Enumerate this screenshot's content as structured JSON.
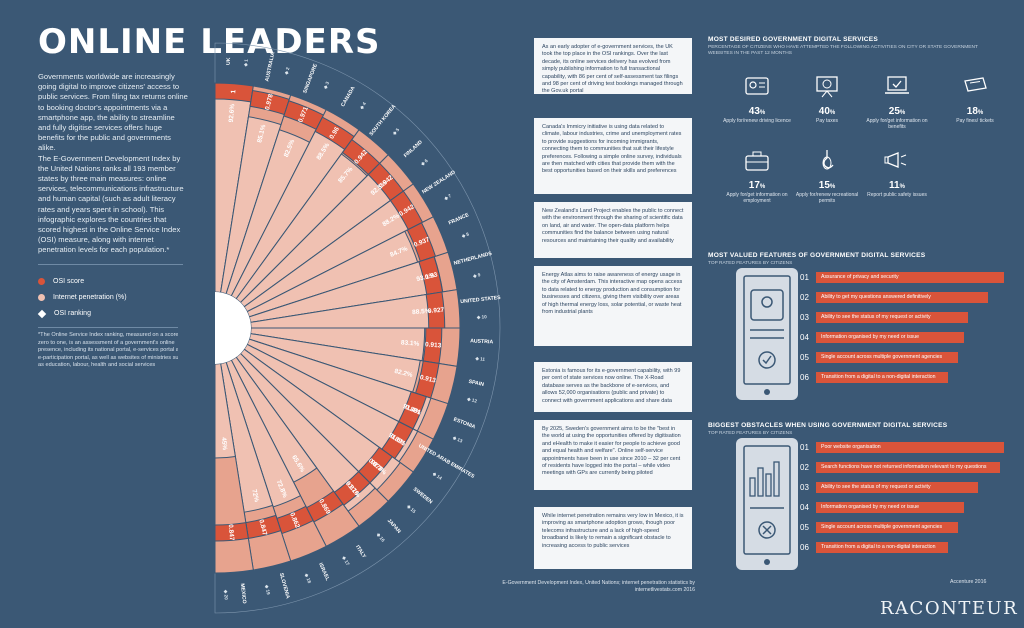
{
  "title": "ONLINE LEADERS",
  "intro_p1": "Governments worldwide are increasingly going digital to improve citizens' access to public services. From filing tax returns online to booking doctor's appointments via a smartphone app, the ability to streamline and fully digitise services offers huge benefits for the public and governments alike.",
  "intro_p2": "The E-Government Development Index by the United Nations ranks all 193 member states by three main measures: online services, telecommunications infrastructure and human capital (such as adult literacy rates and years spent in school). This infographic explores the countries that scored highest in the Online Service Index (OSI) measure, along with internet penetration levels for each population.*",
  "legend": {
    "osi": "OSI score",
    "internet": "Internet penetration (%)",
    "ranking": "OSI ranking"
  },
  "footnote": "*The Online Service Index ranking, measured on a score of zero to one, is an assessment of a government's online presence, including its national portal, e-services portal and e-participation portal, as well as websites of ministries such as education, labour, health and social services",
  "colors": {
    "background": "#3b5875",
    "osi": "#d9543a",
    "internet": "#f0c1b2",
    "card": "#f4f6f8"
  },
  "countries": [
    {
      "name": "UK",
      "rank": "1",
      "osi": "1",
      "internet": "92.6%"
    },
    {
      "name": "AUSTRALIA",
      "rank": "2",
      "osi": "0.978",
      "internet": "85.1%"
    },
    {
      "name": "SINGAPORE",
      "rank": "3",
      "osi": "0.971",
      "internet": "82.5%"
    },
    {
      "name": "CANADA",
      "rank": "4",
      "osi": "0.96",
      "internet": "88.5%"
    },
    {
      "name": "SOUTH KOREA",
      "rank": "5",
      "osi": "0.942",
      "internet": "85.7%"
    },
    {
      "name": "FINLAND",
      "rank": "6",
      "osi": "0.942",
      "internet": "92.5%"
    },
    {
      "name": "NEW ZEALAND",
      "rank": "7",
      "osi": "0.942",
      "internet": "88.2%"
    },
    {
      "name": "FRANCE",
      "rank": "8",
      "osi": "0.937",
      "internet": "84.7%"
    },
    {
      "name": "NETHERLANDS",
      "rank": "9",
      "osi": "0.93",
      "internet": "93.1%"
    },
    {
      "name": "UNITED STATES",
      "rank": "10",
      "osi": "0.927",
      "internet": "88.5%"
    },
    {
      "name": "AUSTRIA",
      "rank": "11",
      "osi": "0.913",
      "internet": "83.1%"
    },
    {
      "name": "SPAIN",
      "rank": "12",
      "osi": "0.913",
      "internet": "82.2%"
    },
    {
      "name": "ESTONIA",
      "rank": "13",
      "osi": "0.891",
      "internet": "91.4%"
    },
    {
      "name": "UNITED ARAB EMIRATES",
      "rank": "14",
      "osi": "0.891",
      "internet": "91.6%"
    },
    {
      "name": "SWEDEN",
      "rank": "15",
      "osi": "0.876",
      "internet": "92.3%"
    },
    {
      "name": "JAPAN",
      "rank": "16",
      "osi": "0.876",
      "internet": "91.1%"
    },
    {
      "name": "ITALY",
      "rank": "17",
      "osi": "0.869",
      "internet": "65.6%"
    },
    {
      "name": "ISRAEL",
      "rank": "18",
      "osi": "0.862",
      "internet": "72.8%"
    },
    {
      "name": "SLOVENIA",
      "rank": "19",
      "osi": "0.847",
      "internet": "72%"
    },
    {
      "name": "MEXICO",
      "rank": "20",
      "osi": "0.847",
      "internet": "45%"
    }
  ],
  "case_studies": [
    "As an early adopter of e-government services, the UK took the top place in the OSI rankings. Over the last decade, its online services delivery has evolved from simply publishing information to full transactional capability, with 86 per cent of self-assessment tax filings and 98 per cent of driving test bookings managed through the Gov.uk portal",
    "Canada's Immicry initiative is using data related to climate, labour industries, crime and unemployment rates to provide suggestions for incoming immigrants, connecting them to communities that suit their lifestyle preferences. Following a simple online survey, individuals are then matched with cities that provide them with the best opportunities based on their skills and preferences",
    "New Zealand's Land Project enables the public to connect with the environment through the sharing of scientific data on land, air and water. The open-data platform helps communities find the balance between using natural resources and maintaining their quality and availability",
    "Energy Atlas aims to raise awareness of energy usage in the city of Amsterdam. This interactive map opens access to data related to energy production and consumption for businesses and citizens, giving them visibility over areas of high thermal energy loss, solar potential, or waste heat from industrial plants",
    "Estonia is famous for its e-government capability, with 99 per cent of state services now online. The X-Road database serves as the backbone of e-services, and allows 52,000 organisations (public and private) to connect with government applications and share data",
    "By 2025, Sweden's government aims to be the \"best in the world at using the opportunities offered by digitisation and eHealth to make it easier for people to achieve good and equal health and welfare\". Online self-service appointments have been in use since 2010 – 32 per cent of residents have logged into the portal – while video meetings with GPs are currently being piloted",
    "While internet penetration remains very low in Mexico, it is improving as smartphone adoption grows, though poor telecoms infrastructure and a lack of high-speed broadband is likely to remain a significant obstacle to increasing access to public services"
  ],
  "sources": "E-Government Development Index, United Nations; internet penetration statistics by internetlivestats.com 2016",
  "desired": {
    "title": "MOST DESIRED GOVERNMENT DIGITAL SERVICES",
    "subtitle": "PERCENTAGE OF CITIZENS WHO HAVE ATTEMPTED THE FOLLOWING ACTIVITIES ON CITY OR STATE GOVERNMENT WEBSITES IN THE PAST 12 MONTHS",
    "items": [
      {
        "value": "43",
        "label": "Apply for/renew driving licence",
        "icon": "id-card-icon"
      },
      {
        "value": "40",
        "label": "Pay taxes",
        "icon": "presentation-icon"
      },
      {
        "value": "25",
        "label": "Apply for/get information on benefits",
        "icon": "laptop-check-icon"
      },
      {
        "value": "18",
        "label": "Pay fines/ tickets",
        "icon": "ticket-icon"
      },
      {
        "value": "17",
        "label": "Apply for/get information on employment",
        "icon": "briefcase-icon"
      },
      {
        "value": "15",
        "label": "Apply for/renew recreational permits",
        "icon": "fish-icon"
      },
      {
        "value": "11",
        "label": "Report public safety issues",
        "icon": "megaphone-icon"
      }
    ]
  },
  "valued": {
    "title": "MOST VALUED FEATURES OF GOVERNMENT DIGITAL SERVICES",
    "subtitle": "TOP RATED FEATURES BY CITIZENS",
    "items": [
      {
        "num": "01",
        "label": "Assurance of privacy and security"
      },
      {
        "num": "02",
        "label": "Ability to get my questions answered definitively"
      },
      {
        "num": "03",
        "label": "Ability to see the status of my request or activity"
      },
      {
        "num": "04",
        "label": "Information organised by my need or issue"
      },
      {
        "num": "05",
        "label": "Single account across multiple government agencies"
      },
      {
        "num": "06",
        "label": "Transition from a digital to a non-digital interaction"
      }
    ]
  },
  "obstacles": {
    "title": "BIGGEST OBSTACLES WHEN USING GOVERNMENT DIGITAL SERVICES",
    "subtitle": "TOP RATED FEATURES BY CITIZENS",
    "items": [
      {
        "num": "01",
        "label": "Poor website organisation"
      },
      {
        "num": "02",
        "label": "Search functions have not returned information relevant to my questions"
      },
      {
        "num": "03",
        "label": "Ability to see the status of my request or activity"
      },
      {
        "num": "04",
        "label": "Information organised by my need or issue"
      },
      {
        "num": "05",
        "label": "Single account across multiple government agencies"
      },
      {
        "num": "06",
        "label": "Transition from a digital to a non-digital interaction"
      }
    ]
  },
  "credit": "Accenture 2016",
  "brand": "RACONTEUR"
}
